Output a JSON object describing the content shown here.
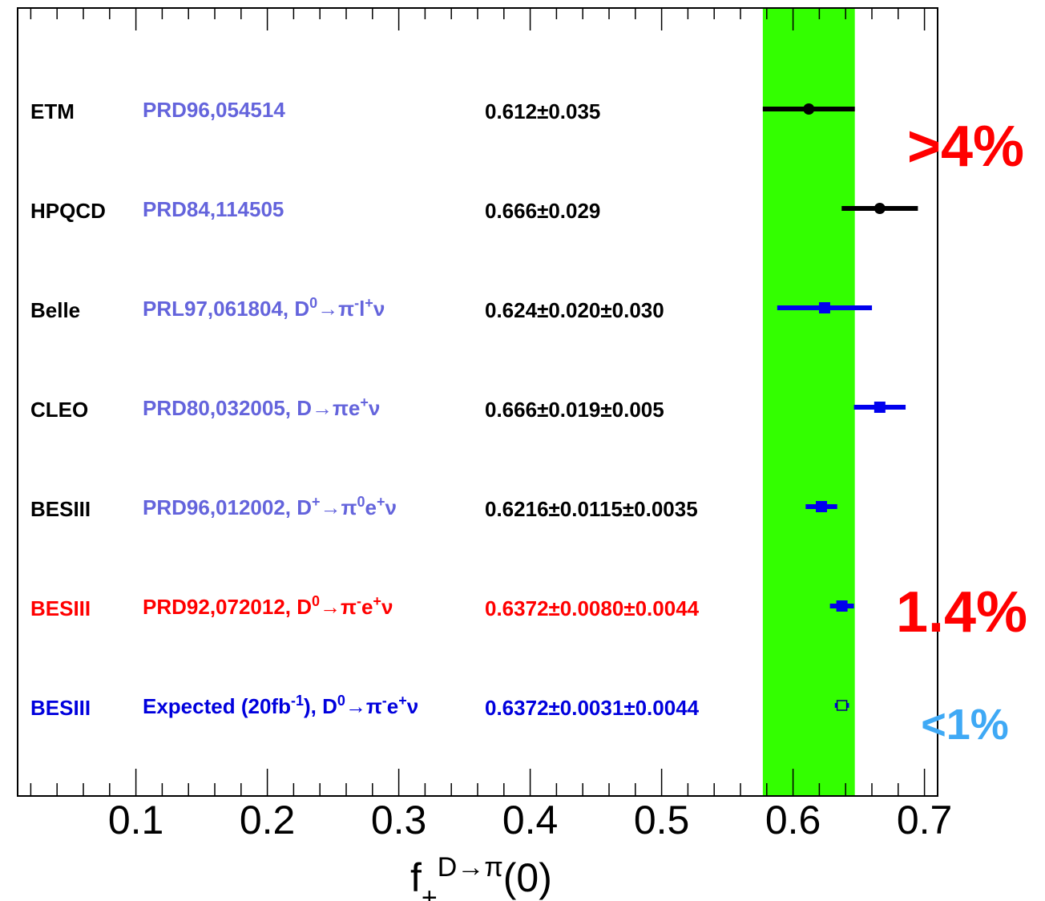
{
  "chart_data": {
    "type": "errorbar",
    "xlim": [
      0.01,
      0.71
    ],
    "xticks": [
      0.1,
      0.2,
      0.3,
      0.4,
      0.5,
      0.6,
      0.7
    ],
    "xminorticks": [
      0.02,
      0.04,
      0.06,
      0.08,
      0.12,
      0.14,
      0.16,
      0.18,
      0.22,
      0.24,
      0.26,
      0.28,
      0.32,
      0.34,
      0.36,
      0.38,
      0.42,
      0.44,
      0.46,
      0.48,
      0.52,
      0.54,
      0.56,
      0.58,
      0.62,
      0.64,
      0.66,
      0.68
    ],
    "x_label": [
      {
        "text": "f"
      },
      {
        "text": "+",
        "sub": true
      },
      {
        "text": "D→π",
        "sup": true
      },
      {
        "text": "(0)"
      }
    ],
    "band": {
      "range": [
        0.577,
        0.647
      ],
      "color": "#33ff00"
    },
    "rows": [
      {
        "name": "ETM",
        "name_color": "#000000",
        "reference": [
          {
            "text": "PRD96,054514"
          }
        ],
        "reference_color": "#6464dc",
        "value_label": "0.612±0.035",
        "value_color": "#000000",
        "value": 0.612,
        "errors": [
          0.035
        ],
        "marker": "circle",
        "marker_color": "#000000"
      },
      {
        "name": "HPQCD",
        "name_color": "#000000",
        "reference": [
          {
            "text": "PRD84,114505"
          }
        ],
        "reference_color": "#6464dc",
        "value_label": "0.666±0.029",
        "value_color": "#000000",
        "value": 0.666,
        "errors": [
          0.029
        ],
        "marker": "circle",
        "marker_color": "#000000"
      },
      {
        "name": "Belle",
        "name_color": "#000000",
        "reference": [
          {
            "text": "PRL97,061804, D"
          },
          {
            "text": "0",
            "sup": true
          },
          {
            "text": "→π"
          },
          {
            "text": "-",
            "sup": true
          },
          {
            "text": "l"
          },
          {
            "text": "+",
            "sup": true
          },
          {
            "text": "ν"
          }
        ],
        "reference_color": "#6464dc",
        "value_label": "0.624±0.020±0.030",
        "value_color": "#000000",
        "value": 0.624,
        "errors": [
          0.02,
          0.03
        ],
        "marker": "square",
        "marker_color": "#0000ee"
      },
      {
        "name": "CLEO",
        "name_color": "#000000",
        "reference": [
          {
            "text": "PRD80,032005, D→πe"
          },
          {
            "text": "+",
            "sup": true
          },
          {
            "text": "ν"
          }
        ],
        "reference_color": "#6464dc",
        "value_label": "0.666±0.019±0.005",
        "value_color": "#000000",
        "value": 0.666,
        "errors": [
          0.019,
          0.005
        ],
        "marker": "square",
        "marker_color": "#0000ee"
      },
      {
        "name": "BESIII",
        "name_color": "#000000",
        "reference": [
          {
            "text": "PRD96,012002, D"
          },
          {
            "text": "+",
            "sup": true
          },
          {
            "text": "→π"
          },
          {
            "text": "0",
            "sup": true
          },
          {
            "text": "e"
          },
          {
            "text": "+",
            "sup": true
          },
          {
            "text": "ν"
          }
        ],
        "reference_color": "#6464dc",
        "value_label": "0.6216±0.0115±0.0035",
        "value_color": "#000000",
        "value": 0.6216,
        "errors": [
          0.0115,
          0.0035
        ],
        "marker": "square",
        "marker_color": "#0000ee"
      },
      {
        "name": "BESIII",
        "name_color": "#ff0000",
        "reference": [
          {
            "text": "PRD92,072012, D"
          },
          {
            "text": "0",
            "sup": true
          },
          {
            "text": "→π"
          },
          {
            "text": "-",
            "sup": true
          },
          {
            "text": "e"
          },
          {
            "text": "+",
            "sup": true
          },
          {
            "text": "ν"
          }
        ],
        "reference_color": "#ff0000",
        "value_label": "0.6372±0.0080±0.0044",
        "value_color": "#ff0000",
        "value": 0.6372,
        "errors": [
          0.008,
          0.0044
        ],
        "marker": "square",
        "marker_color": "#0000ee"
      },
      {
        "name": "BESIII",
        "name_color": "#0000dd",
        "reference": [
          {
            "text": "Expected (20fb"
          },
          {
            "text": "-1",
            "sup": true
          },
          {
            "text": "), D"
          },
          {
            "text": "0",
            "sup": true
          },
          {
            "text": "→π"
          },
          {
            "text": "-",
            "sup": true
          },
          {
            "text": "e"
          },
          {
            "text": "+",
            "sup": true
          },
          {
            "text": "ν"
          }
        ],
        "reference_color": "#0000dd",
        "value_label": "0.6372±0.0031±0.0044",
        "value_color": "#0000dd",
        "value": 0.6372,
        "errors": [
          0.0031,
          0.0044
        ],
        "marker": "open-square",
        "marker_color": "#000080"
      }
    ],
    "annotations": [
      {
        "text": ">4%",
        "color": "#ff0000"
      },
      {
        "text": "1.4%",
        "color": "#ff0000"
      },
      {
        "text": "<1%",
        "color": "#3fa9f5"
      }
    ]
  }
}
